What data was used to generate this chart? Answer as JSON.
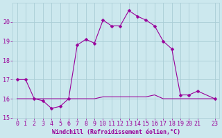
{
  "xlabel": "Windchill (Refroidissement éolien,°C)",
  "xlim": [
    -0.5,
    23.5
  ],
  "ylim": [
    15,
    21
  ],
  "yticks": [
    15,
    16,
    17,
    18,
    19,
    20
  ],
  "xtick_labels": [
    "0",
    "1",
    "2",
    "3",
    "4",
    "5",
    "6",
    "7",
    "8",
    "9",
    "10",
    "11",
    "12",
    "13",
    "14",
    "15",
    "16",
    "17",
    "18",
    "19",
    "20",
    "21",
    "23"
  ],
  "xtick_positions": [
    0,
    1,
    2,
    3,
    4,
    5,
    6,
    7,
    8,
    9,
    10,
    11,
    12,
    13,
    14,
    15,
    16,
    17,
    18,
    19,
    20,
    21,
    23
  ],
  "background_color": "#cce8ee",
  "grid_color": "#aacdd6",
  "line_color": "#990099",
  "line1_x": [
    0,
    1,
    2,
    3,
    4,
    5,
    6,
    7,
    8,
    9,
    10,
    11,
    12,
    13,
    14,
    15,
    16,
    17,
    18,
    19,
    20,
    21,
    23
  ],
  "line1_y": [
    17.0,
    17.0,
    16.0,
    15.9,
    15.5,
    15.6,
    16.0,
    18.8,
    19.1,
    18.9,
    20.1,
    19.8,
    19.8,
    20.6,
    20.3,
    20.1,
    19.8,
    19.0,
    18.6,
    16.2,
    16.2,
    16.4,
    16.0
  ],
  "line2_x": [
    0,
    1,
    2,
    3,
    4,
    5,
    6,
    7,
    8,
    9,
    10,
    11,
    12,
    13,
    14,
    15,
    16,
    17,
    18,
    19,
    20,
    21,
    23
  ],
  "line2_y": [
    16.0,
    16.0,
    16.0,
    16.0,
    16.0,
    16.0,
    16.0,
    16.0,
    16.0,
    16.0,
    16.1,
    16.1,
    16.1,
    16.1,
    16.1,
    16.1,
    16.2,
    16.0,
    16.0,
    16.0,
    16.0,
    16.0,
    16.0
  ],
  "font_color": "#990099",
  "xlabel_fontsize": 6,
  "tick_fontsize": 6,
  "marker_size": 2.5,
  "line_width": 0.8
}
